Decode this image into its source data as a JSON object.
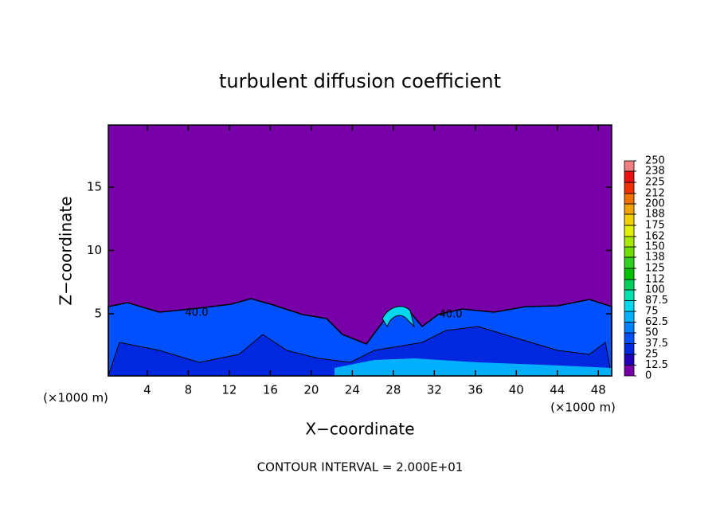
{
  "chart_data": {
    "type": "contour",
    "title": "turbulent diffusion coefficient",
    "x_label": "X−coordinate",
    "y_label": "Z−coordinate",
    "x_unit": "(×1000 m)",
    "footer": "CONTOUR INTERVAL = 2.000E+01",
    "contour_labels": [
      "40.0",
      "40.0"
    ],
    "xlim": [
      0.2,
      49.3
    ],
    "xticks": [
      4,
      8,
      12,
      16,
      20,
      24,
      28,
      32,
      36,
      40,
      44,
      48
    ],
    "ylim": [
      0.1,
      19.9
    ],
    "yticks": [
      5,
      10,
      15
    ],
    "colorbar_lim": [
      0,
      250
    ],
    "colorbar_ticks": [
      0,
      12.5,
      25,
      37.5,
      50,
      62.5,
      75,
      87.5,
      100,
      112,
      125,
      138,
      150,
      162,
      175,
      188,
      200,
      212,
      225,
      238,
      250
    ],
    "colors": [
      "#7800a8",
      "#2000b8",
      "#0028e0",
      "#0050ff",
      "#0080ff",
      "#00b0ff",
      "#00d8f0",
      "#00e0b0",
      "#00d060",
      "#00c000",
      "#30d020",
      "#70e000",
      "#a8e800",
      "#e0f000",
      "#f0d000",
      "#f0a000",
      "#f07000",
      "#f03000",
      "#e81010",
      "#f08080"
    ]
  }
}
